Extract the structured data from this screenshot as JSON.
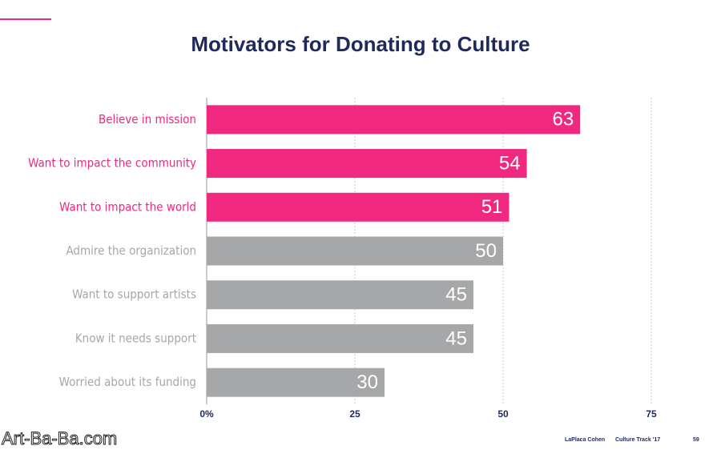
{
  "chart_data": {
    "type": "hbar",
    "title": "Motivators for Donating to Culture",
    "categories": [
      "Believe in mission",
      "Want to impact the community",
      "Want to impact the world",
      "Admire the organization",
      "Want to support artists",
      "Know it needs support",
      "Worried about its funding"
    ],
    "values": [
      63,
      54,
      51,
      50,
      45,
      45,
      30
    ],
    "colors": [
      "#f0287f",
      "#f0287f",
      "#f0287f",
      "#a6a7a8",
      "#a6a7a8",
      "#a6a7a8",
      "#a6a7a8"
    ],
    "xlim": [
      0,
      75
    ],
    "xticks": [
      {
        "value": 0,
        "label": "0%"
      },
      25,
      50,
      75
    ],
    "grid": true
  },
  "footer": {
    "brand": "LaPlaca Cohen",
    "report": "Culture Track '17",
    "page": "59"
  },
  "watermark": "Art-Ba-Ba.com"
}
